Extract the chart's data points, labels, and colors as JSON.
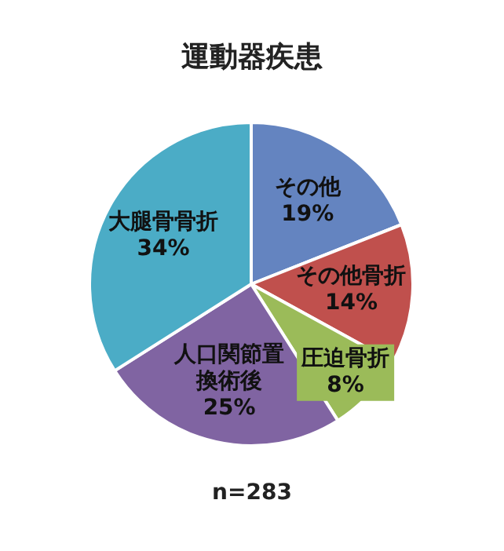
{
  "chart_data": {
    "type": "pie",
    "title": "運動器疾患",
    "categories": [
      "その他",
      "その他骨折",
      "圧迫骨折",
      "人口関節置換術後",
      "大腿骨骨折"
    ],
    "values": [
      19,
      14,
      8,
      25,
      34
    ],
    "value_labels": [
      "19%",
      "14%",
      "8%",
      "25%",
      "34%"
    ],
    "colors": [
      "#6484c0",
      "#c0504d",
      "#9bbb59",
      "#8064a2",
      "#4bacc6"
    ],
    "annotations": [
      "n=283"
    ],
    "legend": false
  }
}
